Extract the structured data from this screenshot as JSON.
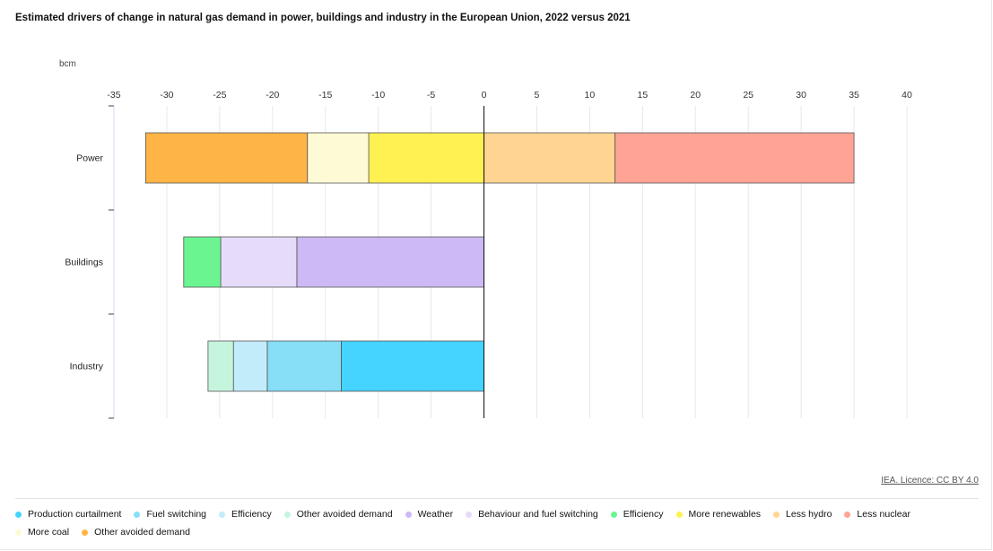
{
  "title": "Estimated drivers of change in natural gas demand in power, buildings and industry in the European Union, 2022 versus 2021",
  "credit": "IEA. Licence: CC BY 4.0",
  "chart_data": {
    "type": "bar",
    "orientation": "horizontal",
    "stacked": true,
    "title": "Estimated drivers of change in natural gas demand in power, buildings and industry in the European Union, 2022 versus 2021",
    "ylabel": "bcm",
    "xlim": [
      -35,
      40
    ],
    "xticks": [
      -35,
      -30,
      -25,
      -20,
      -15,
      -10,
      -5,
      0,
      5,
      10,
      15,
      20,
      25,
      30,
      35,
      40
    ],
    "grid": true,
    "legend_position": "bottom",
    "categories": [
      "Power",
      "Buildings",
      "Industry"
    ],
    "series": [
      {
        "name": "Production curtailment",
        "color": "#45d3ff",
        "values": [
          0,
          0,
          -13.5
        ]
      },
      {
        "name": "Fuel switching",
        "color": "#86dff7",
        "values": [
          0,
          0,
          -7.0
        ]
      },
      {
        "name": "Efficiency",
        "color": "#c3ecfa",
        "values": [
          0,
          0,
          -3.2
        ]
      },
      {
        "name": "Other avoided demand",
        "color": "#c6f5de",
        "values": [
          0,
          0,
          -2.4
        ]
      },
      {
        "name": "Weather",
        "color": "#cdb9f5",
        "values": [
          0,
          -17.7,
          0
        ]
      },
      {
        "name": "Behaviour and fuel switching",
        "color": "#e6dbf9",
        "values": [
          0,
          -7.2,
          0
        ]
      },
      {
        "name": "Efficiency",
        "color": "#6af591",
        "values": [
          0,
          -3.5,
          0
        ]
      },
      {
        "name": "More renewables",
        "color": "#fff152",
        "values": [
          -10.9,
          0,
          0
        ]
      },
      {
        "name": "Less hydro",
        "color": "#ffd591",
        "values": [
          12.4,
          0,
          0
        ]
      },
      {
        "name": "Less nuclear",
        "color": "#ffa395",
        "values": [
          22.6,
          0,
          0
        ]
      },
      {
        "name": "More coal",
        "color": "#fffad6",
        "values": [
          -5.8,
          0,
          0
        ]
      },
      {
        "name": "Other avoided demand",
        "color": "#ffb545",
        "values": [
          -15.3,
          0,
          0
        ]
      }
    ]
  }
}
